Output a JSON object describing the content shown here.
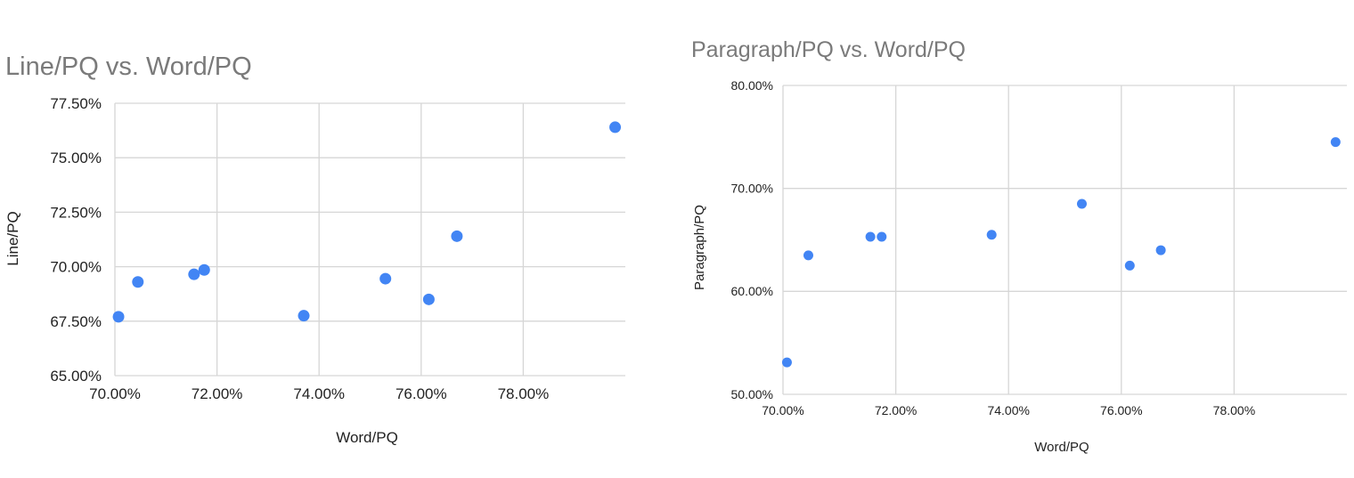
{
  "colors": {
    "point": "#4285f4",
    "grid": "#d6d6d6",
    "title": "#7a7a7a"
  },
  "chart_data": [
    {
      "type": "scatter",
      "title": "Line/PQ vs. Word/PQ",
      "xlabel": "Word/PQ",
      "ylabel": "Line/PQ",
      "xlim": [
        0.7,
        0.8
      ],
      "ylim": [
        0.65,
        0.775
      ],
      "xticks": [
        {
          "value": 0.7,
          "label": "70.00%"
        },
        {
          "value": 0.72,
          "label": "72.00%"
        },
        {
          "value": 0.74,
          "label": "74.00%"
        },
        {
          "value": 0.76,
          "label": "76.00%"
        },
        {
          "value": 0.78,
          "label": "78.00%"
        }
      ],
      "yticks": [
        {
          "value": 0.65,
          "label": "65.00%"
        },
        {
          "value": 0.675,
          "label": "67.50%"
        },
        {
          "value": 0.7,
          "label": "70.00%"
        },
        {
          "value": 0.725,
          "label": "72.50%"
        },
        {
          "value": 0.75,
          "label": "75.00%"
        },
        {
          "value": 0.775,
          "label": "77.50%"
        }
      ],
      "grid": true,
      "legend": "none",
      "points": [
        {
          "x": 0.7007,
          "y": 0.677
        },
        {
          "x": 0.7045,
          "y": 0.693
        },
        {
          "x": 0.7155,
          "y": 0.6965
        },
        {
          "x": 0.7175,
          "y": 0.6985
        },
        {
          "x": 0.737,
          "y": 0.6775
        },
        {
          "x": 0.753,
          "y": 0.6945
        },
        {
          "x": 0.7615,
          "y": 0.685
        },
        {
          "x": 0.767,
          "y": 0.714
        },
        {
          "x": 0.798,
          "y": 0.764
        }
      ]
    },
    {
      "type": "scatter",
      "title": "Paragraph/PQ vs. Word/PQ",
      "xlabel": "Word/PQ",
      "ylabel": "Paragraph/PQ",
      "xlim": [
        0.7,
        0.8
      ],
      "ylim": [
        0.5,
        0.8
      ],
      "xticks": [
        {
          "value": 0.7,
          "label": "70.00%"
        },
        {
          "value": 0.72,
          "label": "72.00%"
        },
        {
          "value": 0.74,
          "label": "74.00%"
        },
        {
          "value": 0.76,
          "label": "76.00%"
        },
        {
          "value": 0.78,
          "label": "78.00%"
        }
      ],
      "yticks": [
        {
          "value": 0.5,
          "label": "50.00%"
        },
        {
          "value": 0.6,
          "label": "60.00%"
        },
        {
          "value": 0.7,
          "label": "70.00%"
        },
        {
          "value": 0.8,
          "label": "80.00%"
        }
      ],
      "grid": true,
      "legend": "none",
      "points": [
        {
          "x": 0.7007,
          "y": 0.531
        },
        {
          "x": 0.7045,
          "y": 0.635
        },
        {
          "x": 0.7155,
          "y": 0.653
        },
        {
          "x": 0.7175,
          "y": 0.653
        },
        {
          "x": 0.737,
          "y": 0.655
        },
        {
          "x": 0.753,
          "y": 0.685
        },
        {
          "x": 0.7615,
          "y": 0.625
        },
        {
          "x": 0.767,
          "y": 0.64
        },
        {
          "x": 0.798,
          "y": 0.745
        }
      ]
    }
  ]
}
